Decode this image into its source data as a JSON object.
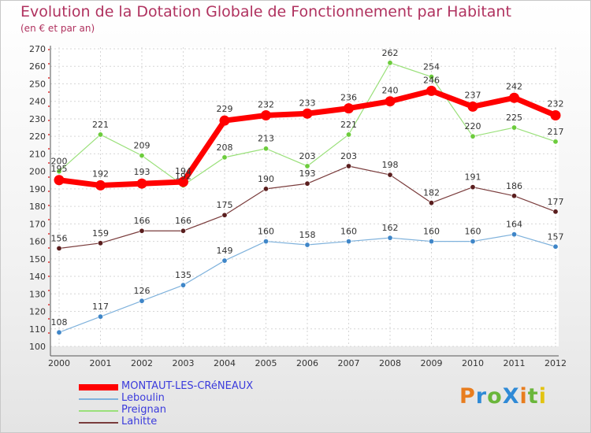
{
  "title": "Evolution de la Dotation Globale de Fonctionnement par Habitant",
  "subtitle": "(en € et par an)",
  "logo": {
    "text": "ProXiti",
    "colors": [
      "#e87d1e",
      "#2f8ad6",
      "#6ab63b",
      "#2f8ad6",
      "#e87d1e",
      "#6ab63b",
      "#e2c312"
    ]
  },
  "chart_data": {
    "type": "line",
    "x": [
      "2000",
      "2001",
      "2002",
      "2003",
      "2004",
      "2005",
      "2006",
      "2007",
      "2008",
      "2009",
      "2010",
      "2011",
      "2012"
    ],
    "ylim": [
      100,
      270
    ],
    "yticks": [
      100,
      110,
      120,
      130,
      140,
      150,
      160,
      170,
      180,
      190,
      200,
      210,
      220,
      230,
      240,
      250,
      260,
      270
    ],
    "grid": true,
    "legend_position": "bottom-left",
    "series": [
      {
        "name": "MONTAUT-LES-CRéNEAUX",
        "color": "#ff0000",
        "marker": "#ff0000",
        "width": 7,
        "values": [
          195,
          192,
          193,
          194,
          229,
          232,
          233,
          236,
          240,
          246,
          237,
          242,
          232
        ]
      },
      {
        "name": "Leboulin",
        "color": "#7fb2dc",
        "marker": "#3f86c8",
        "width": 1.2,
        "values": [
          108,
          117,
          126,
          135,
          149,
          160,
          158,
          160,
          162,
          160,
          160,
          164,
          157
        ]
      },
      {
        "name": "Preignan",
        "color": "#9ae07a",
        "marker": "#6ccc3c",
        "width": 1.2,
        "values": [
          200,
          221,
          209,
          192,
          208,
          213,
          203,
          221,
          262,
          254,
          220,
          225,
          217
        ]
      },
      {
        "name": "Lahitte",
        "color": "#7a3c3c",
        "marker": "#5a1e1e",
        "width": 1.2,
        "values": [
          156,
          159,
          166,
          166,
          175,
          190,
          193,
          203,
          198,
          182,
          191,
          186,
          177
        ]
      }
    ]
  }
}
